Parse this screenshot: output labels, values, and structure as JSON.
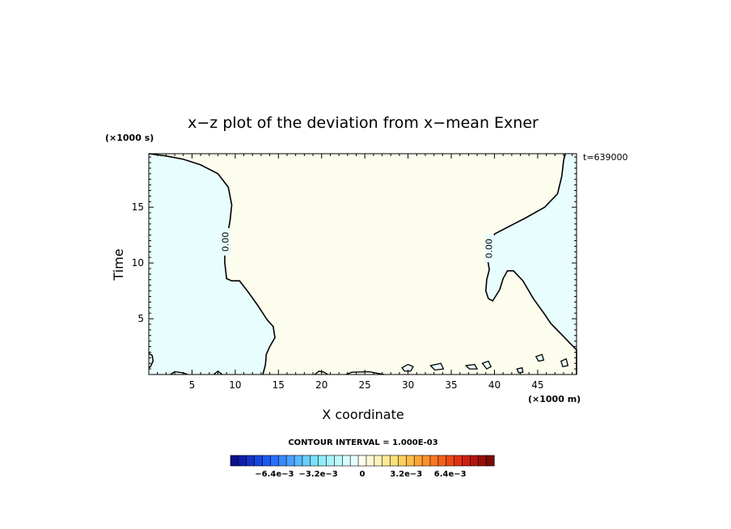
{
  "chart_data": {
    "type": "contour",
    "title": "x−z plot of the deviation from x−mean Exner",
    "xlabel": "X coordinate",
    "ylabel": "Time",
    "x_unit": "(×1000 m)",
    "y_unit": "(×1000 s)",
    "time_label": "t=639000",
    "xlim": [
      0,
      49.5
    ],
    "ylim": [
      0,
      19.8
    ],
    "x_ticks": [
      5,
      10,
      15,
      20,
      25,
      30,
      35,
      40,
      45
    ],
    "y_ticks": [
      5,
      10,
      15
    ],
    "contour_level": 0.0,
    "contour_labels": [
      "0.00",
      "0.00"
    ],
    "contour_interval_text": "CONTOUR INTERVAL = 1.000E-03",
    "colors": {
      "negative_fill": "#e8fdfd",
      "positive_fill": "#fdfdee",
      "contour_line": "#000000"
    },
    "colorbar": {
      "tick_labels": [
        "−6.4e−3",
        "−3.2e−3",
        "0",
        "3.2e−3",
        "6.4e−3"
      ],
      "tick_values": [
        -0.0064,
        -0.0032,
        0,
        0.0032,
        0.0064
      ],
      "range": [
        -0.0096,
        0.0096
      ],
      "colors": [
        "#0a0f8c",
        "#0f1ea8",
        "#1432c4",
        "#1846dc",
        "#1e5af0",
        "#2a70f8",
        "#3a88fc",
        "#4aa0fc",
        "#5ab8fc",
        "#6acdfc",
        "#7ae0fc",
        "#90ebfc",
        "#a8f2fc",
        "#c0f7fc",
        "#d6fbfc",
        "#e8fdfd",
        "#fdfdee",
        "#fcf8d6",
        "#fcf2b8",
        "#fcea98",
        "#fce07a",
        "#fcd060",
        "#fcbc48",
        "#fca638",
        "#fc902c",
        "#f87824",
        "#f4601e",
        "#ec4818",
        "#e03214",
        "#cc2010",
        "#b4140c",
        "#96100a",
        "#7a0c08"
      ]
    },
    "contours": {
      "left_boundary": [
        [
          0,
          19.8
        ],
        [
          2,
          19.6
        ],
        [
          4,
          19.3
        ],
        [
          6,
          18.8
        ],
        [
          8,
          18.0
        ],
        [
          9.2,
          16.8
        ],
        [
          9.6,
          15.2
        ],
        [
          9.4,
          13.8
        ],
        [
          9.1,
          12.5
        ],
        [
          8.8,
          11.2
        ],
        [
          8.8,
          10.0
        ],
        [
          9.0,
          8.6
        ],
        [
          9.6,
          8.4
        ],
        [
          10.5,
          8.4
        ],
        [
          11.5,
          7.4
        ],
        [
          12.6,
          6.2
        ],
        [
          13.7,
          4.9
        ],
        [
          14.4,
          4.3
        ],
        [
          14.6,
          3.3
        ],
        [
          14.0,
          2.5
        ],
        [
          13.6,
          1.8
        ],
        [
          13.5,
          0.9
        ],
        [
          13.2,
          0.0
        ]
      ],
      "right_boundary": [
        [
          49.5,
          0.0
        ],
        [
          49.5,
          2.2
        ],
        [
          48.5,
          3.0
        ],
        [
          46.5,
          4.6
        ],
        [
          45.8,
          5.4
        ],
        [
          44.5,
          6.8
        ],
        [
          43.3,
          8.4
        ],
        [
          42.2,
          9.3
        ],
        [
          41.5,
          9.3
        ],
        [
          41.0,
          8.6
        ],
        [
          40.6,
          7.6
        ],
        [
          39.8,
          6.6
        ],
        [
          39.3,
          6.8
        ],
        [
          39.0,
          7.5
        ],
        [
          39.1,
          8.5
        ],
        [
          39.4,
          9.4
        ],
        [
          39.2,
          10.4
        ],
        [
          39.4,
          11.6
        ],
        [
          40.0,
          12.6
        ],
        [
          41.5,
          13.2
        ],
        [
          43.5,
          14.0
        ],
        [
          45.8,
          15.0
        ],
        [
          47.3,
          16.2
        ],
        [
          47.8,
          17.8
        ],
        [
          48.0,
          19.2
        ],
        [
          48.2,
          19.8
        ]
      ],
      "corner_left": [
        [
          0,
          1.9
        ],
        [
          0.4,
          1.7
        ],
        [
          0.5,
          1.2
        ],
        [
          0.2,
          0.7
        ],
        [
          0,
          0.6
        ]
      ],
      "islands": [
        [
          [
            29.3,
            0.6
          ],
          [
            30.0,
            0.9
          ],
          [
            30.6,
            0.7
          ],
          [
            30.3,
            0.3
          ],
          [
            29.6,
            0.3
          ]
        ],
        [
          [
            32.6,
            0.8
          ],
          [
            33.8,
            1.0
          ],
          [
            34.1,
            0.5
          ],
          [
            33.1,
            0.4
          ]
        ],
        [
          [
            36.7,
            0.8
          ],
          [
            37.7,
            0.9
          ],
          [
            38.0,
            0.5
          ],
          [
            37.1,
            0.5
          ]
        ],
        [
          [
            38.6,
            1.0
          ],
          [
            39.3,
            1.2
          ],
          [
            39.6,
            0.7
          ],
          [
            39.1,
            0.5
          ]
        ],
        [
          [
            44.8,
            1.6
          ],
          [
            45.5,
            1.8
          ],
          [
            45.7,
            1.3
          ],
          [
            45.1,
            1.2
          ]
        ],
        [
          [
            47.7,
            1.2
          ],
          [
            48.3,
            1.4
          ],
          [
            48.5,
            0.8
          ],
          [
            47.9,
            0.7
          ]
        ],
        [
          [
            42.6,
            0.5
          ],
          [
            43.2,
            0.6
          ],
          [
            43.3,
            0.2
          ],
          [
            42.8,
            0.15
          ]
        ]
      ],
      "bottom_bumps": [
        [
          [
            19.2,
            0.0
          ],
          [
            19.7,
            0.3
          ],
          [
            20.3,
            0.2
          ],
          [
            20.7,
            0.0
          ]
        ],
        [
          [
            22.8,
            0.0
          ],
          [
            23.5,
            0.2
          ],
          [
            25.5,
            0.25
          ],
          [
            27.2,
            0.0
          ]
        ],
        [
          [
            2.5,
            0.0
          ],
          [
            3.0,
            0.25
          ],
          [
            4.0,
            0.15
          ],
          [
            4.5,
            0.0
          ]
        ],
        [
          [
            7.5,
            0.0
          ],
          [
            8.0,
            0.3
          ],
          [
            8.5,
            0.0
          ]
        ]
      ]
    }
  }
}
